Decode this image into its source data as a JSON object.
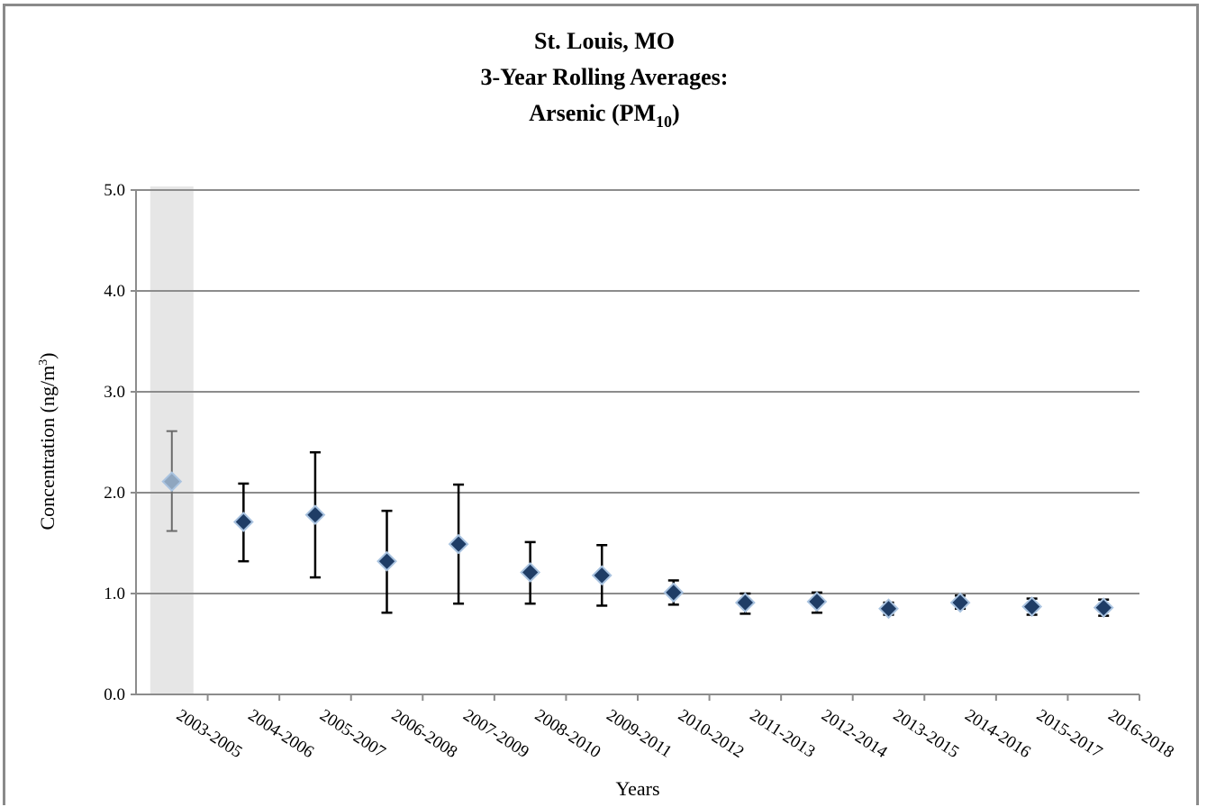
{
  "chart_data": {
    "type": "scatter",
    "title_lines": [
      "St.  Louis, MO",
      "3-Year Rolling Averages:"
    ],
    "title_line3": {
      "main": "Arsenic (PM",
      "subscript": "10",
      "close": ")"
    },
    "xlabel": "Years",
    "ylabel": {
      "main": "Concentration (ng/m",
      "superscript": "3",
      "close": ")"
    },
    "ylim": [
      0,
      5
    ],
    "yticks": [
      "0.0",
      "1.0",
      "2.0",
      "3.0",
      "4.0",
      "5.0"
    ],
    "grid": true,
    "categories": [
      "2003-2005",
      "2004-2006",
      "2005-2007",
      "2006-2008",
      "2007-2009",
      "2008-2010",
      "2009-2011",
      "2010-2012",
      "2011-2013",
      "2012-2014",
      "2013-2015",
      "2014-2016",
      "2015-2017",
      "2016-2018"
    ],
    "values": [
      2.11,
      1.71,
      1.78,
      1.32,
      1.49,
      1.21,
      1.18,
      1.01,
      0.91,
      0.92,
      0.85,
      0.91,
      0.87,
      0.86
    ],
    "error_low": [
      1.62,
      1.32,
      1.16,
      0.81,
      0.9,
      0.9,
      0.88,
      0.89,
      0.8,
      0.81,
      0.79,
      0.85,
      0.79,
      0.78
    ],
    "error_high": [
      2.61,
      2.09,
      2.4,
      1.82,
      2.08,
      1.51,
      1.48,
      1.13,
      1.0,
      1.01,
      0.91,
      0.98,
      0.95,
      0.94
    ],
    "highlighted_categories": [
      "2003-2005"
    ],
    "colors": {
      "marker": "#1f3d66",
      "marker_edge": "#a9c3e0",
      "marker_highlight": "#8fa6bf",
      "error_bar": "#000000",
      "error_bar_highlight": "#6b6b6b",
      "highlight_band": "#e6e6e6",
      "grid": "#8c8c8c"
    }
  }
}
